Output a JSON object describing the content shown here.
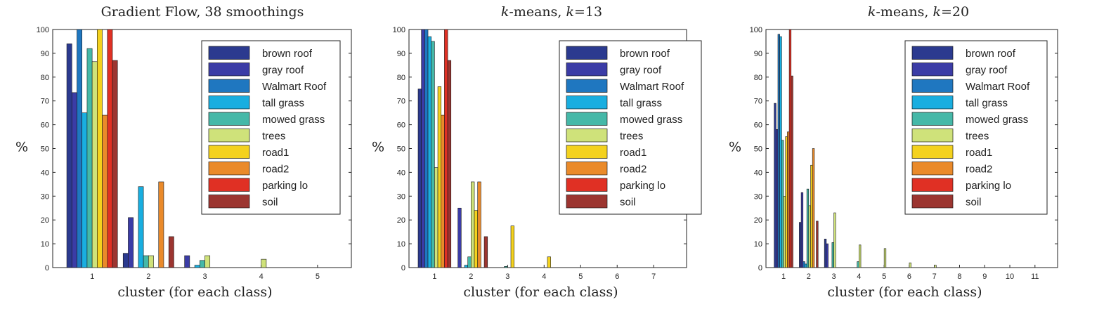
{
  "colors": {
    "brown roof": "#2b3a8f",
    "gray roof": "#3b3ca6",
    "Walmart Roof": "#1f77c0",
    "tall grass": "#19aee0",
    "mowed grass": "#45b8a8",
    "trees": "#cfe27a",
    "road1": "#f4d21e",
    "road2": "#ea8a2a",
    "parking lo": "#e03024",
    "soil": "#9c3530"
  },
  "chart_data": [
    {
      "type": "bar",
      "title_parts": [
        {
          "text": "Gradient Flow, 38 smoothings",
          "italic": false
        }
      ],
      "xlabel": "cluster (for each class)",
      "ylabel": "%",
      "ylim": [
        0,
        100
      ],
      "xlim": [
        0.3,
        5.6
      ],
      "yticks": [
        0,
        10,
        20,
        30,
        40,
        50,
        60,
        70,
        80,
        90,
        100
      ],
      "xticks": [
        1,
        2,
        3,
        4,
        5
      ],
      "bar_group_width": 0.9,
      "legend_position": "top-right",
      "legend": [
        "brown roof",
        "gray roof",
        "Walmart Roof",
        "tall grass",
        "mowed grass",
        "trees",
        "road1",
        "road2",
        "parking lo",
        "soil"
      ],
      "series": [
        {
          "name": "brown roof",
          "values": [
            94,
            6,
            0,
            0,
            0
          ]
        },
        {
          "name": "gray roof",
          "values": [
            73.5,
            21,
            5,
            0,
            0
          ]
        },
        {
          "name": "Walmart Roof",
          "values": [
            100,
            0,
            0,
            0,
            0
          ]
        },
        {
          "name": "tall grass",
          "values": [
            65,
            34,
            1,
            0,
            0
          ]
        },
        {
          "name": "mowed grass",
          "values": [
            92,
            5,
            3,
            0,
            0
          ]
        },
        {
          "name": "trees",
          "values": [
            86.5,
            5,
            5,
            3.5,
            0
          ]
        },
        {
          "name": "road1",
          "values": [
            100,
            0,
            0,
            0,
            0
          ]
        },
        {
          "name": "road2",
          "values": [
            64,
            36,
            0,
            0,
            0
          ]
        },
        {
          "name": "parking lo",
          "values": [
            100,
            0,
            0,
            0,
            0
          ]
        },
        {
          "name": "soil",
          "values": [
            87,
            13,
            0,
            0,
            0
          ]
        }
      ]
    },
    {
      "type": "bar",
      "title_parts": [
        {
          "text": "k",
          "italic": true
        },
        {
          "text": "-means, ",
          "italic": false
        },
        {
          "text": "k",
          "italic": true
        },
        {
          "text": "=13",
          "italic": false
        }
      ],
      "xlabel": "cluster (for each class)",
      "ylabel": "%",
      "ylim": [
        0,
        100
      ],
      "xlim": [
        0.3,
        7.9
      ],
      "yticks": [
        0,
        10,
        20,
        30,
        40,
        50,
        60,
        70,
        80,
        90,
        100
      ],
      "xticks": [
        1,
        2,
        3,
        4,
        5,
        6,
        7
      ],
      "bar_group_width": 0.9,
      "legend_position": "top-right",
      "legend": [
        "brown roof",
        "gray roof",
        "Walmart Roof",
        "tall grass",
        "mowed grass",
        "trees",
        "road1",
        "road2",
        "parking lo",
        "soil"
      ],
      "series": [
        {
          "name": "brown roof",
          "values": [
            75,
            0,
            0,
            0,
            0,
            0,
            0
          ]
        },
        {
          "name": "gray roof",
          "values": [
            100,
            25,
            0,
            0,
            0,
            0,
            0
          ]
        },
        {
          "name": "Walmart Roof",
          "values": [
            100,
            0,
            0,
            0,
            0,
            0,
            0
          ]
        },
        {
          "name": "tall grass",
          "values": [
            97,
            1,
            0,
            0,
            0,
            0,
            0
          ]
        },
        {
          "name": "mowed grass",
          "values": [
            95,
            4.5,
            0.5,
            0,
            0,
            0,
            0
          ]
        },
        {
          "name": "trees",
          "values": [
            42,
            36,
            0,
            0,
            0,
            0,
            0
          ]
        },
        {
          "name": "road1",
          "values": [
            76,
            24,
            17.5,
            4.5,
            0,
            0,
            0
          ]
        },
        {
          "name": "road2",
          "values": [
            64,
            36,
            0,
            0,
            0,
            0,
            0
          ]
        },
        {
          "name": "parking lo",
          "values": [
            100,
            0,
            0,
            0,
            0,
            0,
            0
          ]
        },
        {
          "name": "soil",
          "values": [
            87,
            13,
            0,
            0,
            0,
            0,
            0
          ]
        }
      ]
    },
    {
      "type": "bar",
      "title_parts": [
        {
          "text": "k",
          "italic": true
        },
        {
          "text": "-means, ",
          "italic": false
        },
        {
          "text": "k",
          "italic": true
        },
        {
          "text": "=20",
          "italic": false
        }
      ],
      "xlabel": "cluster (for each class)",
      "ylabel": "%",
      "ylim": [
        0,
        100
      ],
      "xlim": [
        0.3,
        11.9
      ],
      "yticks": [
        0,
        10,
        20,
        30,
        40,
        50,
        60,
        70,
        80,
        90,
        100
      ],
      "xticks": [
        1,
        2,
        3,
        4,
        5,
        6,
        7,
        8,
        9,
        10,
        11
      ],
      "bar_group_width": 0.75,
      "legend_position": "top-right",
      "legend": [
        "brown roof",
        "gray roof",
        "Walmart Roof",
        "tall grass",
        "mowed grass",
        "trees",
        "road1",
        "road2",
        "parking lo",
        "soil"
      ],
      "series": [
        {
          "name": "brown roof",
          "values": [
            69,
            19,
            12,
            0,
            0,
            0,
            0,
            0,
            0,
            0,
            0
          ]
        },
        {
          "name": "gray roof",
          "values": [
            58,
            31.5,
            10,
            0,
            0,
            0,
            0,
            0,
            0,
            0,
            0
          ]
        },
        {
          "name": "Walmart Roof",
          "values": [
            98,
            2.5,
            0,
            0,
            0,
            0,
            0,
            0,
            0,
            0,
            0
          ]
        },
        {
          "name": "tall grass",
          "values": [
            97,
            1.5,
            0,
            0,
            0,
            0,
            0,
            0,
            0,
            0,
            0
          ]
        },
        {
          "name": "mowed grass",
          "values": [
            53.5,
            33,
            10.5,
            2.5,
            0,
            0,
            0,
            0,
            0,
            0,
            0
          ]
        },
        {
          "name": "trees",
          "values": [
            30,
            26,
            23,
            9.5,
            8,
            2,
            1,
            0,
            0,
            0,
            0
          ]
        },
        {
          "name": "road1",
          "values": [
            55,
            43,
            0,
            0,
            0,
            0,
            0,
            0,
            0,
            0,
            0
          ]
        },
        {
          "name": "road2",
          "values": [
            57,
            50,
            0,
            0,
            0,
            0,
            0,
            0,
            0,
            0,
            0
          ]
        },
        {
          "name": "parking lo",
          "values": [
            100,
            0,
            0,
            0,
            0,
            0,
            0,
            0,
            0,
            0,
            0
          ]
        },
        {
          "name": "soil",
          "values": [
            80.5,
            19.5,
            0,
            0,
            0,
            0,
            0,
            0,
            0,
            0,
            0
          ]
        }
      ]
    }
  ]
}
